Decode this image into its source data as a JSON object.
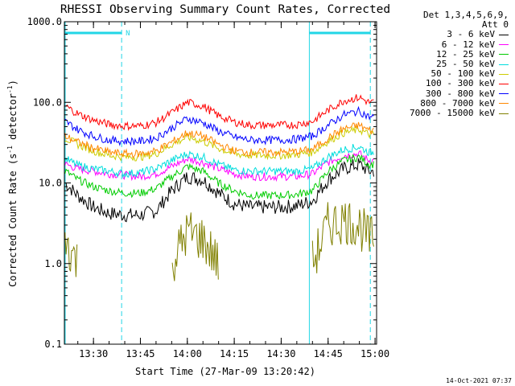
{
  "chart_data": {
    "type": "line",
    "title": "RHESSI Observing Summary Count Rates, Corrected",
    "xlabel": "Start Time (27-Mar-09 13:20:42)",
    "ylabel_main": "Corrected Count Rate (s",
    "ylabel_sup1": "-1",
    "ylabel_mid": " detector",
    "ylabel_sup2": "-1",
    "ylabel_end": ")",
    "y_scale": "log",
    "ylim": [
      0.1,
      1000
    ],
    "xlim_minutes": [
      "13:20:42",
      "15:00:30"
    ],
    "x_ticks": [
      "13:30",
      "13:45",
      "14:00",
      "14:15",
      "14:30",
      "14:45",
      "15:00"
    ],
    "y_ticks": [
      "1000.0",
      "100.0",
      "10.0",
      "1.0",
      "0.1"
    ],
    "legend_header": [
      "Det 1,3,4,5,6,9,",
      "Att 0"
    ],
    "flag_label": "N",
    "annotation_time": "14-Oct-2021 07:37",
    "markers": {
      "night_bar": {
        "from": "13:20:42",
        "to": "13:39:00"
      },
      "day_bar": {
        "from": "14:39:00",
        "to": "14:58:30"
      },
      "vlines_solid": [
        "14:39:00"
      ],
      "vlines_dashed": [
        "13:39:00",
        "14:58:30"
      ],
      "color": "#22d6e6"
    },
    "x": [
      "13:21",
      "13:25",
      "13:30",
      "13:35",
      "13:40",
      "13:45",
      "13:50",
      "13:55",
      "14:00",
      "14:05",
      "14:10",
      "14:15",
      "14:20",
      "14:25",
      "14:30",
      "14:35",
      "14:40",
      "14:45",
      "14:50",
      "14:55",
      "14:58"
    ],
    "series": [
      {
        "name": "3 - 6 keV",
        "color": "#000000",
        "values": [
          10,
          7,
          5,
          4.2,
          4,
          4,
          4.5,
          8,
          12,
          11,
          7.5,
          5.5,
          5,
          5,
          5,
          5.2,
          6,
          11,
          15,
          17,
          14
        ]
      },
      {
        "name": "6 - 12 keV",
        "color": "#ff00ff",
        "values": [
          17,
          15,
          14,
          13,
          12.5,
          12,
          13,
          16,
          20,
          18,
          15,
          13,
          12,
          12,
          12,
          12,
          13,
          18,
          22,
          23,
          19
        ]
      },
      {
        "name": "12 - 25 keV",
        "color": "#00cc00",
        "values": [
          14,
          11,
          9,
          8,
          7.5,
          7.5,
          8.5,
          12,
          16,
          14,
          10,
          8,
          7,
          7,
          7,
          7.2,
          8,
          14,
          19,
          21,
          17
        ]
      },
      {
        "name": "25 - 50 keV",
        "color": "#00dddd",
        "values": [
          20,
          16.5,
          15,
          14,
          13,
          13.5,
          15,
          19,
          23,
          21,
          17,
          14.5,
          14,
          14,
          14,
          14,
          15,
          21,
          26,
          28,
          24
        ]
      },
      {
        "name": "50 - 100 keV",
        "color": "#cccc00",
        "values": [
          36,
          30,
          25,
          22,
          21,
          21,
          23,
          30,
          37,
          33,
          27,
          23,
          22,
          22,
          22,
          22.5,
          24,
          33,
          42,
          46,
          40
        ]
      },
      {
        "name": "100 - 300 keV",
        "color": "#ff0000",
        "values": [
          90,
          72,
          60,
          53,
          51,
          51,
          56,
          74,
          100,
          90,
          68,
          57,
          52,
          52,
          52,
          53,
          58,
          80,
          105,
          115,
          100
        ]
      },
      {
        "name": "300 - 800 keV",
        "color": "#0000ff",
        "values": [
          58,
          46,
          38,
          34,
          33,
          33,
          36,
          48,
          63,
          56,
          44,
          37,
          34,
          34,
          34,
          35,
          38,
          52,
          70,
          78,
          66
        ]
      },
      {
        "name": "800 - 7000 keV",
        "color": "#ff8800",
        "values": [
          38,
          32,
          27,
          24,
          23,
          23,
          25,
          32,
          42,
          38,
          30,
          25,
          24,
          24,
          24,
          24.5,
          26,
          36,
          47,
          52,
          45
        ]
      },
      {
        "name": "7000 - 15000 keV",
        "color": "#808000",
        "values": [
          2,
          1,
          null,
          null,
          null,
          null,
          null,
          1,
          2.5,
          2,
          1,
          null,
          null,
          null,
          null,
          null,
          1,
          3,
          3.5,
          3,
          2
        ]
      }
    ]
  }
}
